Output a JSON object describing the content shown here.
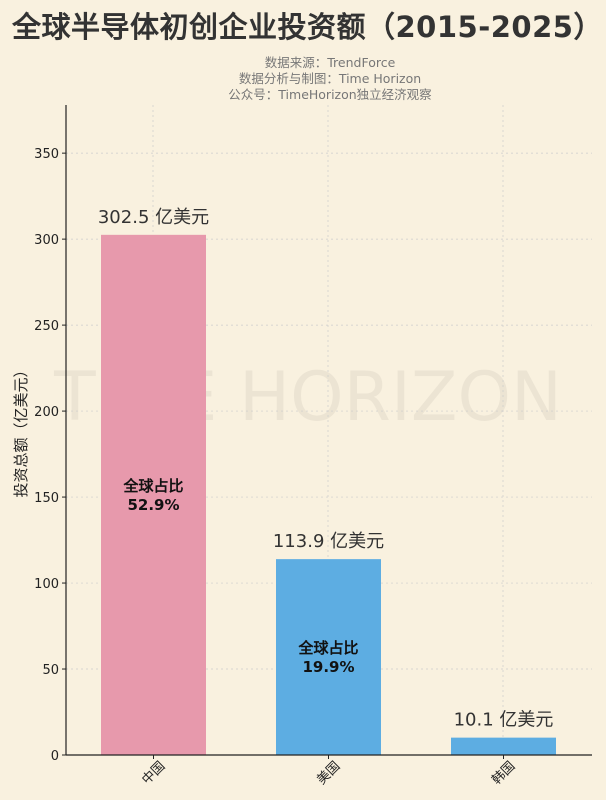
{
  "title": "全球半导体初创企业投资额（2015-2025）",
  "subtitles": [
    "数据来源：TrendForce",
    "数据分析与制图：Time Horizon",
    "公众号：TimeHorizon独立经济观察"
  ],
  "watermark": "TIME HORIZON",
  "chart_data": {
    "type": "bar",
    "title": "全球半导体初创企业投资额（2015-2025）",
    "ylabel": "投资总额（亿美元）",
    "xlabel": "",
    "categories": [
      "中国",
      "美国",
      "韩国"
    ],
    "values": [
      302.5,
      113.9,
      10.1
    ],
    "data_labels": [
      "302.5 亿美元",
      "113.9 亿美元",
      "10.1 亿美元"
    ],
    "share_labels": [
      {
        "label": "全球占比",
        "value": "52.9%"
      },
      {
        "label": "全球占比",
        "value": "19.9%"
      },
      null
    ],
    "colors": [
      "#e799ac",
      "#5dade2",
      "#5dade2"
    ],
    "ylim": [
      0,
      378
    ],
    "yticks": [
      0,
      50,
      100,
      150,
      200,
      250,
      300,
      350
    ],
    "grid": true,
    "legend": "none"
  }
}
